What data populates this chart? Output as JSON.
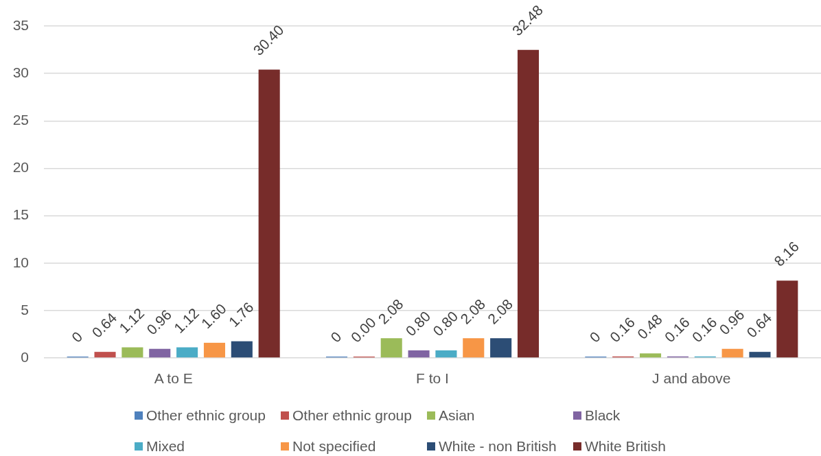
{
  "chart_data": {
    "type": "bar",
    "categories": [
      "A to E",
      "F to I",
      "J and above"
    ],
    "series": [
      {
        "name": "Other ethnic group",
        "color": "#4f81bd",
        "values": [
          0,
          0,
          0
        ],
        "value_labels": [
          "0",
          "0",
          "0"
        ]
      },
      {
        "name": "Other ethnic group",
        "color": "#c0504d",
        "values": [
          0.64,
          0,
          0.16
        ],
        "value_labels": [
          "0.64",
          "0.00",
          "0.16"
        ]
      },
      {
        "name": "Asian",
        "color": "#9bbb59",
        "values": [
          1.12,
          2.08,
          0.48
        ],
        "value_labels": [
          "1.12",
          "2.08",
          "0.48"
        ]
      },
      {
        "name": "Black",
        "color": "#8064a2",
        "values": [
          0.96,
          0.8,
          0.16
        ],
        "value_labels": [
          "0.96",
          "0.80",
          "0.16"
        ]
      },
      {
        "name": "Mixed",
        "color": "#4bacc6",
        "values": [
          1.12,
          0.8,
          0.16
        ],
        "value_labels": [
          "1.12",
          "0.80",
          "0.16"
        ]
      },
      {
        "name": "Not specified",
        "color": "#f79646",
        "values": [
          1.6,
          2.08,
          0.96
        ],
        "value_labels": [
          "1.60",
          "2.08",
          "0.96"
        ]
      },
      {
        "name": "White - non British",
        "color": "#2c4d75",
        "values": [
          1.76,
          2.08,
          0.64
        ],
        "value_labels": [
          "1.76",
          "2.08",
          "0.64"
        ]
      },
      {
        "name": "White British",
        "color": "#772c2a",
        "values": [
          30.4,
          32.48,
          8.16
        ],
        "value_labels": [
          "30.40",
          "32.48",
          "8.16"
        ]
      }
    ],
    "ylim": [
      0,
      35
    ],
    "yticks": [
      0,
      5,
      10,
      15,
      20,
      25,
      30,
      35
    ],
    "grid": "y",
    "legend": "bottom"
  }
}
